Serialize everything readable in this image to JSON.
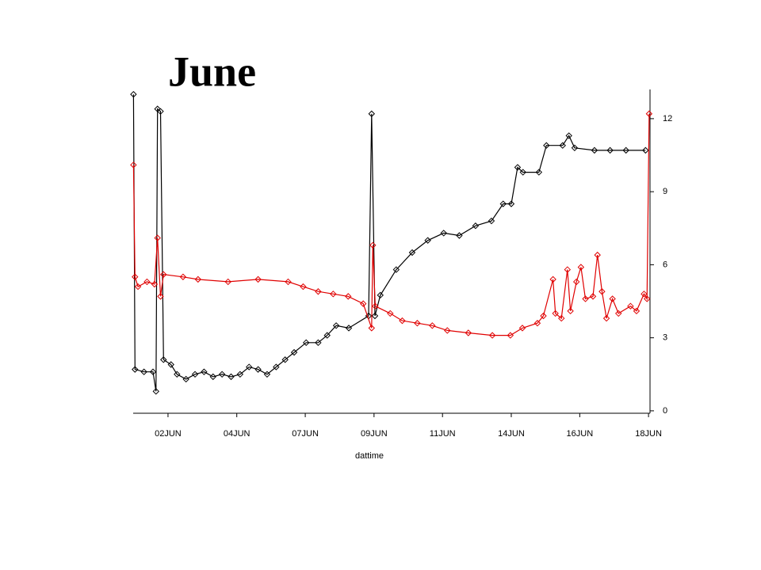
{
  "chart_data": {
    "type": "line",
    "title": "June",
    "x_label": "dattime",
    "xlim": [
      0.84,
      18.05
    ],
    "ylim": [
      -0.1,
      13.2
    ],
    "xticks": [
      {
        "value": 2,
        "label": "02JUN"
      },
      {
        "value": 4.29,
        "label": "04JUN"
      },
      {
        "value": 6.57,
        "label": "07JUN"
      },
      {
        "value": 8.86,
        "label": "09JUN"
      },
      {
        "value": 11.14,
        "label": "11JUN"
      },
      {
        "value": 13.43,
        "label": "14JUN"
      },
      {
        "value": 15.71,
        "label": "16JUN"
      },
      {
        "value": 18,
        "label": "18JUN"
      }
    ],
    "yticks": [
      0,
      3,
      6,
      9,
      12
    ],
    "series": [
      {
        "color": "#000000",
        "x": [
          0.85,
          0.9,
          1.2,
          1.5,
          1.6,
          1.65,
          1.75,
          1.85,
          2.1,
          2.3,
          2.6,
          2.9,
          3.2,
          3.5,
          3.8,
          4.1,
          4.4,
          4.7,
          5.0,
          5.3,
          5.6,
          5.9,
          6.2,
          6.6,
          7.0,
          7.3,
          7.6,
          8.02,
          8.68,
          8.78,
          8.89,
          9.07,
          9.6,
          10.13,
          10.65,
          11.18,
          11.7,
          12.24,
          12.77,
          13.16,
          13.43,
          13.64,
          13.82,
          14.35,
          14.6,
          15.14,
          15.35,
          15.54,
          16.2,
          16.72,
          17.25,
          17.9
        ],
        "values": [
          13.0,
          1.7,
          1.6,
          1.6,
          0.8,
          12.4,
          12.3,
          2.1,
          1.9,
          1.5,
          1.3,
          1.5,
          1.6,
          1.4,
          1.5,
          1.4,
          1.5,
          1.8,
          1.7,
          1.5,
          1.8,
          2.1,
          2.4,
          2.8,
          2.8,
          3.1,
          3.5,
          3.4,
          3.9,
          12.2,
          3.9,
          4.75,
          5.8,
          6.5,
          7.0,
          7.3,
          7.2,
          7.6,
          7.8,
          8.5,
          8.5,
          10.0,
          9.8,
          9.8,
          10.9,
          10.9,
          11.3,
          10.8,
          10.7,
          10.7,
          10.7,
          10.7
        ]
      },
      {
        "color": "#e00000",
        "x": [
          0.85,
          0.9,
          1.0,
          1.3,
          1.55,
          1.65,
          1.75,
          1.85,
          2.5,
          3.0,
          4.0,
          5.0,
          6.0,
          6.5,
          7.0,
          7.5,
          8.0,
          8.5,
          8.78,
          8.82,
          8.9,
          9.4,
          9.8,
          10.3,
          10.8,
          11.3,
          12.0,
          12.8,
          13.4,
          13.8,
          14.3,
          14.5,
          14.82,
          14.9,
          15.1,
          15.3,
          15.4,
          15.6,
          15.75,
          15.9,
          16.15,
          16.3,
          16.45,
          16.6,
          16.8,
          17.0,
          17.4,
          17.6,
          17.85,
          17.95,
          18.02
        ],
        "values": [
          10.1,
          5.5,
          5.1,
          5.3,
          5.2,
          7.1,
          4.7,
          5.6,
          5.5,
          5.4,
          5.3,
          5.4,
          5.3,
          5.1,
          4.9,
          4.8,
          4.7,
          4.4,
          3.4,
          6.8,
          4.3,
          4.0,
          3.7,
          3.6,
          3.5,
          3.3,
          3.2,
          3.1,
          3.1,
          3.4,
          3.6,
          3.9,
          5.4,
          4.0,
          3.8,
          5.8,
          4.1,
          5.3,
          5.9,
          4.6,
          4.7,
          6.4,
          4.9,
          3.8,
          4.6,
          4.0,
          4.3,
          4.1,
          4.8,
          4.6,
          12.2
        ]
      }
    ]
  }
}
